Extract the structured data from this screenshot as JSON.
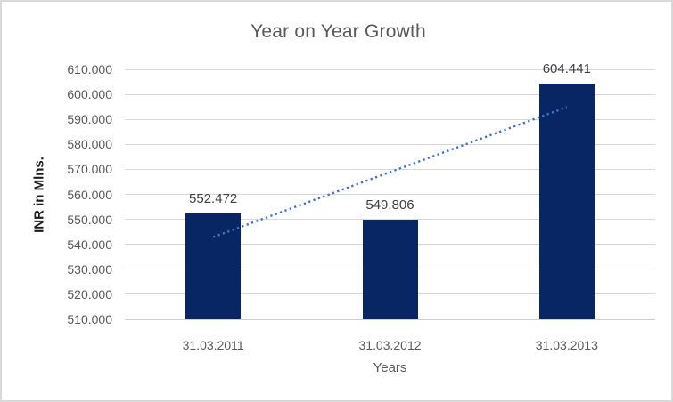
{
  "chart_data": {
    "type": "bar",
    "title": "Year on Year Growth",
    "xlabel": "Years",
    "ylabel": "INR in Mlns.",
    "categories": [
      "31.03.2011",
      "31.03.2012",
      "31.03.2013"
    ],
    "values": [
      552.472,
      549.806,
      604.441
    ],
    "value_labels": [
      "552.472",
      "549.806",
      "604.441"
    ],
    "ylim": [
      510,
      610
    ],
    "y_tick_step": 10,
    "y_tick_labels": [
      "510.000",
      "520.000",
      "530.000",
      "540.000",
      "550.000",
      "560.000",
      "570.000",
      "580.000",
      "590.000",
      "600.000",
      "610.000"
    ],
    "grid": true,
    "legend": "none",
    "trendline": {
      "style": "dotted",
      "start_value": 542.9,
      "end_value": 594.9
    },
    "colors": {
      "bar": "#082664",
      "trendline": "#4472c4",
      "gridline": "#d9d9d9",
      "axis_line": "#d0cece",
      "tick_text": "#595959",
      "title_text": "#595959",
      "axis_title_text": "#595959",
      "y_axis_title_text": "#1a1a1a",
      "data_label_text": "#404040",
      "frame_border": "#d9d9d9",
      "background": "#ffffff"
    }
  }
}
